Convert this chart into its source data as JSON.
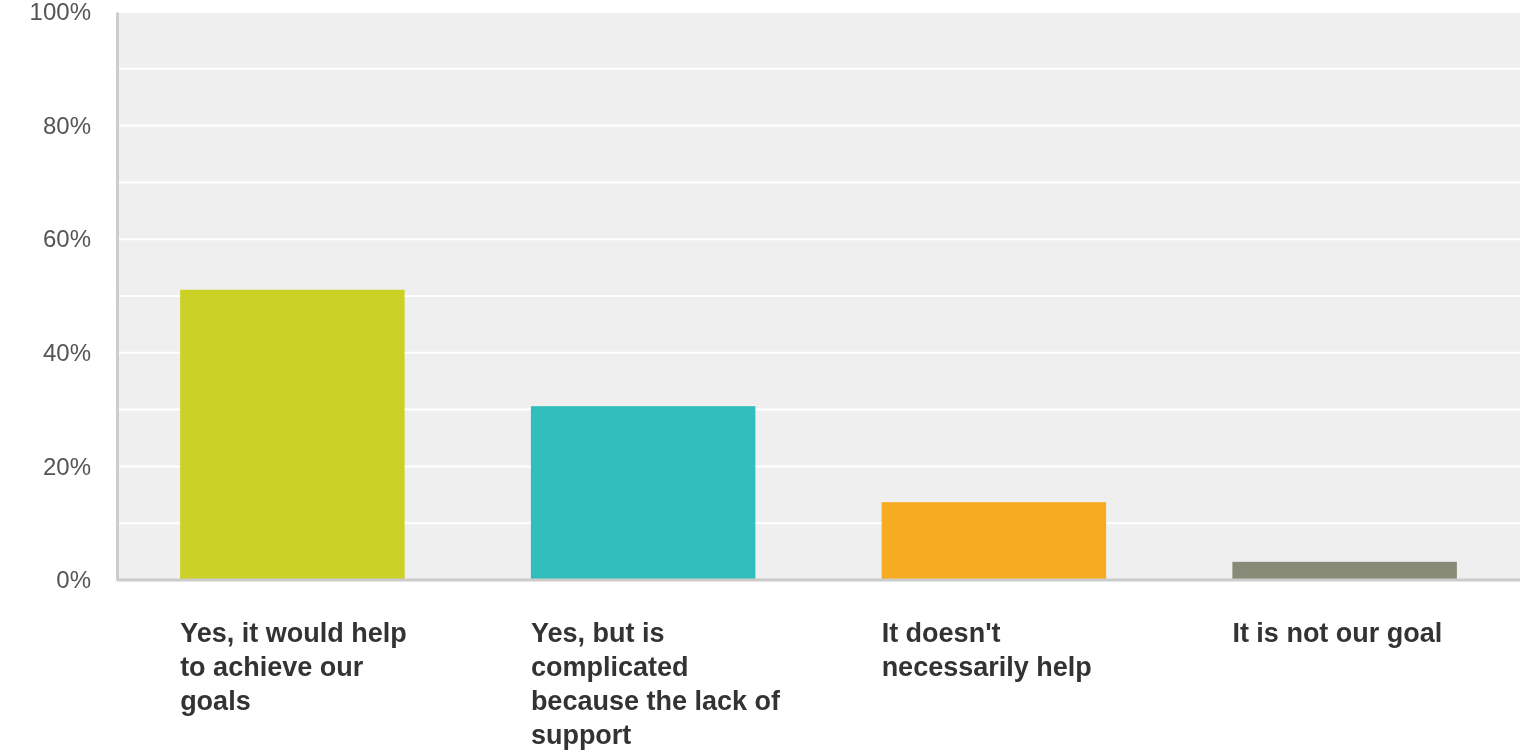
{
  "chart_data": {
    "type": "bar",
    "categories": [
      "Yes, it would help to achieve our goals",
      "Yes, but is complicated because the lack of support",
      "It doesn't necessarily help",
      "It is not our goal"
    ],
    "values": [
      51.1,
      30.6,
      13.7,
      3.2
    ],
    "colors": [
      "#cbd125",
      "#32bdbd",
      "#f6ab20",
      "#878a76"
    ],
    "ylim": [
      0,
      100
    ],
    "yticks": [
      {
        "value": 0,
        "label": "0%"
      },
      {
        "value": 10,
        "label": null
      },
      {
        "value": 20,
        "label": "20%"
      },
      {
        "value": 30,
        "label": null
      },
      {
        "value": 40,
        "label": "40%"
      },
      {
        "value": 50,
        "label": null
      },
      {
        "value": 60,
        "label": "60%"
      },
      {
        "value": 70,
        "label": null
      },
      {
        "value": 80,
        "label": "80%"
      },
      {
        "value": 90,
        "label": null
      },
      {
        "value": 100,
        "label": "100%"
      }
    ],
    "grid": true
  }
}
